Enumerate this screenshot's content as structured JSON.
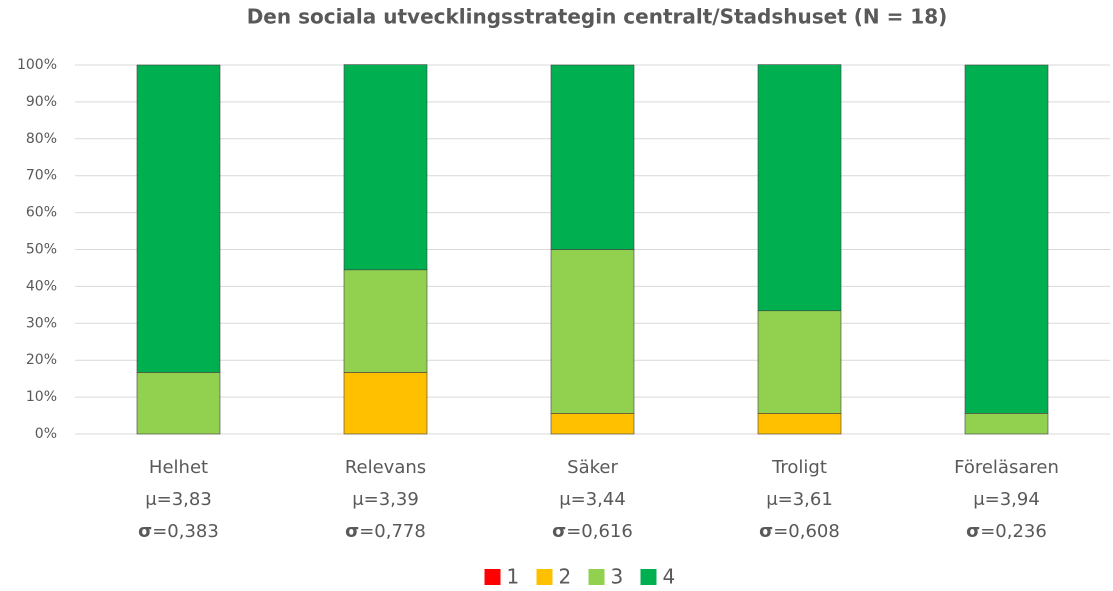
{
  "chart_data": {
    "type": "stacked_bar",
    "title": "Den sociala utvecklingsstrategin centralt/Stadshuset (N = 18)",
    "categories": [
      "Helhet",
      "Relevans",
      "Säker",
      "Troligt",
      "Föreläsaren"
    ],
    "mean_labels": [
      "μ=3,83",
      "μ=3,39",
      "μ=3,44",
      "μ=3,61",
      "μ=3,94"
    ],
    "sd_labels": [
      "σ=0,383",
      "σ=0,778",
      "σ=0,616",
      "σ=0,608",
      "σ=0,236"
    ],
    "series": [
      {
        "name": "1",
        "color": "#ff0000",
        "values": [
          0,
          0,
          0,
          0,
          0
        ]
      },
      {
        "name": "2",
        "color": "#ffc000",
        "values": [
          0,
          16.7,
          5.6,
          5.6,
          0
        ]
      },
      {
        "name": "3",
        "color": "#92d050",
        "values": [
          16.7,
          27.8,
          44.4,
          27.8,
          5.6
        ]
      },
      {
        "name": "4",
        "color": "#00b050",
        "values": [
          83.3,
          55.6,
          50,
          66.7,
          94.4
        ]
      }
    ],
    "ylim": [
      0,
      100
    ],
    "yticks": [
      {
        "value": 0,
        "label": "0%"
      },
      {
        "value": 10,
        "label": "10%"
      },
      {
        "value": 20,
        "label": "20%"
      },
      {
        "value": 30,
        "label": "30%"
      },
      {
        "value": 40,
        "label": "40%"
      },
      {
        "value": 50,
        "label": "50%"
      },
      {
        "value": 60,
        "label": "60%"
      },
      {
        "value": 70,
        "label": "70%"
      },
      {
        "value": 80,
        "label": "80%"
      },
      {
        "value": 90,
        "label": "90%"
      },
      {
        "value": 100,
        "label": "100%"
      }
    ],
    "grid": true,
    "legend": "bottom"
  }
}
